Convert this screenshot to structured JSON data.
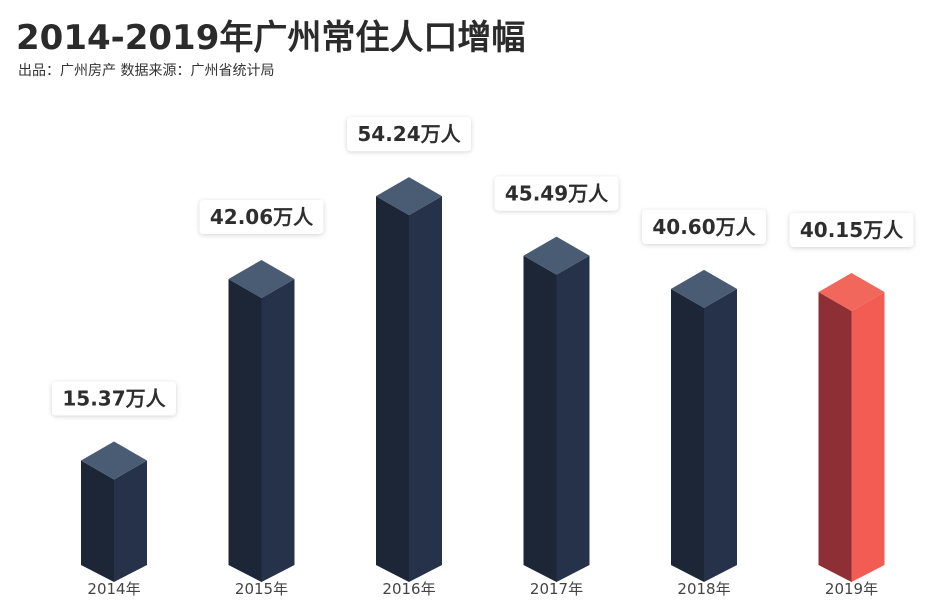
{
  "title": "2014-2019年广州常住人口增幅",
  "subtitle": "出品：广州房产   数据来源：广州省统计局",
  "colors": {
    "bar_front": "#26324a",
    "bar_side": "#1d2636",
    "bar_top": "#4a5b74",
    "highlight_front": "#f25c53",
    "highlight_side": "#8e2f35",
    "highlight_top": "#f1675c"
  },
  "chart_data": {
    "type": "bar",
    "title": "2014-2019年广州常住人口增幅",
    "subtitle": "出品：广州房产   数据来源：广州省统计局",
    "categories": [
      "2014年",
      "2015年",
      "2016年",
      "2017年",
      "2018年",
      "2019年"
    ],
    "values": [
      15.37,
      42.06,
      54.24,
      45.49,
      40.6,
      40.15
    ],
    "value_labels": [
      "15.37万人",
      "42.06万人",
      "54.24万人",
      "45.49万人",
      "40.60万人",
      "40.15万人"
    ],
    "unit": "万人",
    "highlight_index": 5,
    "grid": false,
    "legend": "none"
  }
}
